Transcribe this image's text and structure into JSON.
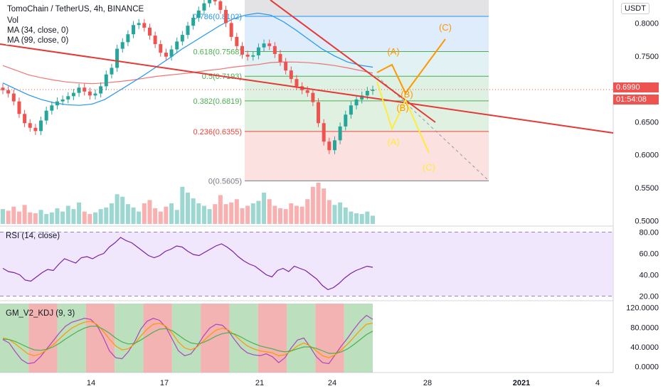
{
  "header": {
    "symbol_line": "TomoChain / TetherUS, 4h, BINANCE",
    "vol_label": "Vol",
    "ma1_label": "MA (34, close, 0)",
    "ma2_label": "MA (99, close, 0)",
    "currency": "USDT"
  },
  "colors": {
    "up": "#26a69a",
    "down": "#ef5350",
    "ma34": "#2196f3",
    "ma99": "#ef5350",
    "trendline": "#e53935",
    "wave_orange": "#ff9800",
    "wave_yellow": "#ffeb3b",
    "rsi_line": "#7b1fa2",
    "rsi_band": "#e9ddfb"
  },
  "tags": {
    "last_price": "0.6990",
    "countdown": "01:54:08"
  },
  "fib_levels": [
    {
      "ratio": "0.786",
      "value": 0.8102,
      "label": "0.786(0.8102)",
      "color": "#2196f3"
    },
    {
      "ratio": "0.618",
      "value": 0.7568,
      "label": "0.618(0.7568)",
      "color": "#4caf50"
    },
    {
      "ratio": "0.5",
      "value": 0.7193,
      "label": "0.5(0.7193)",
      "color": "#4caf50"
    },
    {
      "ratio": "0.382",
      "value": 0.6819,
      "label": "0.382(0.6819)",
      "color": "#4caf50"
    },
    {
      "ratio": "0.236",
      "value": 0.6355,
      "label": "0.236(0.6355)",
      "color": "#f44336"
    },
    {
      "ratio": "0",
      "value": 0.5605,
      "label": "0(0.5605)",
      "color": "#787b86"
    }
  ],
  "wave_labels": {
    "orange_A": "(A)",
    "orange_B": "(B)",
    "orange_C": "(C)",
    "yellow_A": "(A)",
    "yellow_B": "(B)",
    "yellow_C": "(C)"
  },
  "rsi": {
    "title": "RSI (14, close)",
    "ticks": [
      "80.00",
      "60.00",
      "40.00",
      "20.00"
    ]
  },
  "kdj": {
    "title": "GM_V2_KDJ (9, 3)",
    "ticks": [
      "120.0000",
      "80.0000",
      "40.0000",
      "0.0000"
    ]
  },
  "chart_data": [
    {
      "type": "candlestick",
      "title": "TomoChain / TetherUS, 4h, BINANCE",
      "y_unit": "USDT",
      "y_ticks": [
        "0.8000",
        "0.7500",
        "0.7000",
        "0.6500",
        "0.6000",
        "0.5500",
        "0.5000"
      ],
      "ylim": [
        0.495,
        0.835
      ],
      "x_ticks": [
        "14",
        "17",
        "21",
        "24",
        "28",
        "2021",
        "4"
      ],
      "close": [
        0.698,
        0.693,
        0.681,
        0.662,
        0.648,
        0.641,
        0.636,
        0.652,
        0.667,
        0.675,
        0.681,
        0.684,
        0.689,
        0.694,
        0.702,
        0.696,
        0.69,
        0.693,
        0.704,
        0.722,
        0.732,
        0.761,
        0.771,
        0.783,
        0.797,
        0.8,
        0.793,
        0.781,
        0.768,
        0.755,
        0.749,
        0.76,
        0.772,
        0.782,
        0.796,
        0.808,
        0.819,
        0.83,
        0.838,
        0.833,
        0.82,
        0.8,
        0.779,
        0.765,
        0.752,
        0.749,
        0.751,
        0.763,
        0.769,
        0.765,
        0.753,
        0.741,
        0.728,
        0.715,
        0.704,
        0.698,
        0.694,
        0.68,
        0.648,
        0.62,
        0.607,
        0.622,
        0.643,
        0.661,
        0.675,
        0.684,
        0.69,
        0.697,
        0.699
      ],
      "volume": [
        0.36,
        0.32,
        0.42,
        0.3,
        0.46,
        0.28,
        0.26,
        0.34,
        0.24,
        0.28,
        0.38,
        0.3,
        0.44,
        0.36,
        0.52,
        0.3,
        0.24,
        0.28,
        0.36,
        0.4,
        0.5,
        0.72,
        0.66,
        0.48,
        0.4,
        0.3,
        0.5,
        0.58,
        0.38,
        0.3,
        0.42,
        0.5,
        0.34,
        0.9,
        0.76,
        0.62,
        0.5,
        0.44,
        0.36,
        0.48,
        0.7,
        0.48,
        0.52,
        0.6,
        0.38,
        0.44,
        0.5,
        0.56,
        0.76,
        0.6,
        0.44,
        0.38,
        0.36,
        0.5,
        0.44,
        0.42,
        0.6,
        0.9,
        1.0,
        0.86,
        0.58,
        0.46,
        0.52,
        0.4,
        0.3,
        0.26,
        0.24,
        0.3,
        0.2
      ],
      "ma34": [
        0.709,
        0.7,
        0.691,
        0.684,
        0.679,
        0.676,
        0.675,
        0.677,
        0.684,
        0.696,
        0.708,
        0.72,
        0.733,
        0.746,
        0.76,
        0.772,
        0.784,
        0.796,
        0.806,
        0.812,
        0.815,
        0.812,
        0.802,
        0.789,
        0.775,
        0.761,
        0.75,
        0.741,
        0.736,
        0.733
      ],
      "ma99": [
        0.7355,
        0.7285,
        0.7215,
        0.717,
        0.7135,
        0.7105,
        0.709,
        0.708,
        0.709,
        0.711,
        0.713,
        0.716,
        0.719,
        0.721,
        0.723,
        0.725,
        0.728,
        0.73,
        0.733,
        0.735,
        0.737,
        0.74,
        0.741,
        0.7408,
        0.7398,
        0.738,
        0.7355,
        0.732,
        0.728,
        0.724
      ]
    },
    {
      "type": "line",
      "title": "RSI (14, close)",
      "ylim": [
        17,
        83
      ],
      "band": [
        20,
        80
      ],
      "values": [
        46,
        43,
        42,
        40,
        35,
        34,
        38,
        42,
        45,
        44,
        50,
        55,
        53,
        51,
        56,
        57,
        55,
        58,
        60,
        66,
        70,
        75,
        72,
        70,
        66,
        62,
        58,
        56,
        58,
        62,
        64,
        67,
        66,
        62,
        59,
        58,
        61,
        64,
        67,
        69,
        66,
        62,
        57,
        53,
        50,
        48,
        44,
        40,
        38,
        44,
        46,
        43,
        48,
        46,
        44,
        40,
        36,
        30,
        26,
        28,
        32,
        37,
        41,
        44,
        46,
        48,
        47
      ]
    },
    {
      "type": "line",
      "title": "GM_V2_KDJ (9, 3)",
      "ylim": [
        -12,
        128
      ],
      "series": [
        {
          "values": [
            55,
            48,
            30,
            14,
            6,
            8,
            20,
            36,
            52,
            68,
            82,
            90,
            94,
            98,
            96,
            84,
            60,
            32,
            18,
            16,
            30,
            50,
            76,
            92,
            98,
            94,
            80,
            56,
            32,
            22,
            26,
            42,
            62,
            78,
            86,
            84,
            72,
            54,
            38,
            28,
            24,
            22,
            26,
            20,
            8,
            18,
            38,
            54,
            58,
            40,
            20,
            8,
            6,
            24,
            42,
            58,
            76,
            92,
            104,
            96
          ]
        },
        {
          "values": [
            58,
            55,
            46,
            36,
            26,
            22,
            26,
            34,
            44,
            56,
            68,
            78,
            85,
            90,
            92,
            86,
            72,
            56,
            42,
            34,
            36,
            46,
            62,
            76,
            86,
            88,
            82,
            68,
            50,
            38,
            34,
            40,
            52,
            64,
            74,
            78,
            74,
            64,
            52,
            42,
            36,
            32,
            30,
            28,
            22,
            24,
            32,
            42,
            48,
            42,
            32,
            22,
            18,
            24,
            34,
            46,
            60,
            74,
            86,
            88
          ]
        },
        {
          "values": [
            56,
            55,
            51,
            45,
            39,
            34,
            33,
            35,
            40,
            47,
            56,
            64,
            72,
            78,
            82,
            82,
            76,
            68,
            58,
            50,
            46,
            47,
            54,
            62,
            70,
            76,
            77,
            73,
            64,
            55,
            48,
            46,
            49,
            55,
            62,
            67,
            69,
            66,
            60,
            53,
            47,
            42,
            39,
            36,
            32,
            30,
            32,
            36,
            40,
            40,
            37,
            32,
            27,
            27,
            30,
            36,
            45,
            55,
            65,
            72
          ]
        }
      ],
      "background_zones": [
        "green",
        "red",
        "green",
        "red",
        "green",
        "red",
        "green",
        "red",
        "green",
        "red",
        "green",
        "red",
        "green"
      ]
    }
  ]
}
